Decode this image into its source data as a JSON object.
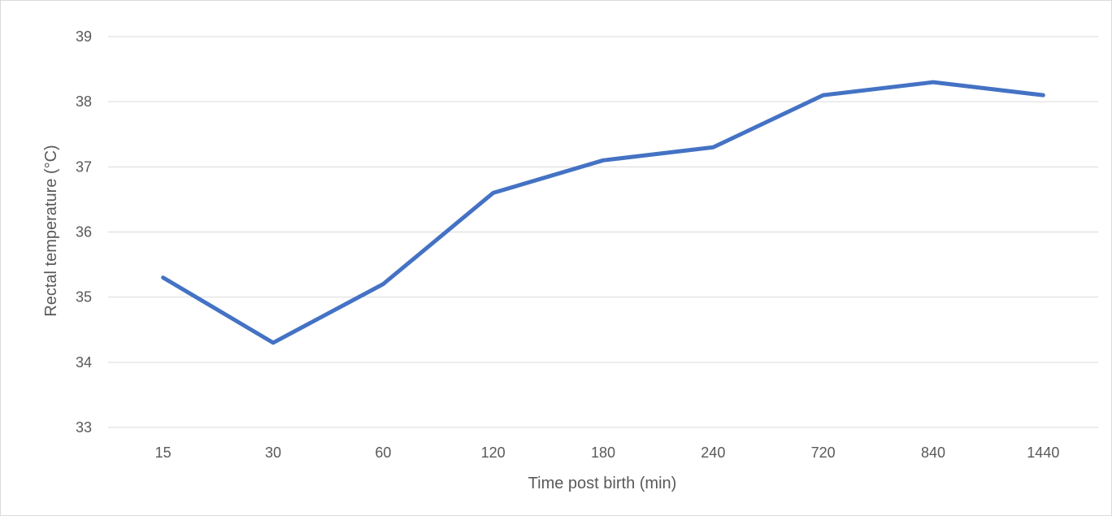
{
  "chart_data": {
    "type": "line",
    "title": "",
    "xlabel": "Time post birth (min)",
    "ylabel": "Rectal temperature (°C)",
    "categories": [
      "15",
      "30",
      "60",
      "120",
      "180",
      "240",
      "720",
      "840",
      "1440"
    ],
    "series": [
      {
        "values": [
          35.3,
          34.3,
          35.2,
          36.6,
          37.1,
          37.3,
          38.1,
          38.3,
          38.1
        ],
        "color": "#4472c4"
      }
    ],
    "ylim": [
      33,
      39
    ],
    "yticks": [
      "33",
      "34",
      "35",
      "36",
      "37",
      "38",
      "39"
    ],
    "grid": true,
    "legend": "none"
  }
}
